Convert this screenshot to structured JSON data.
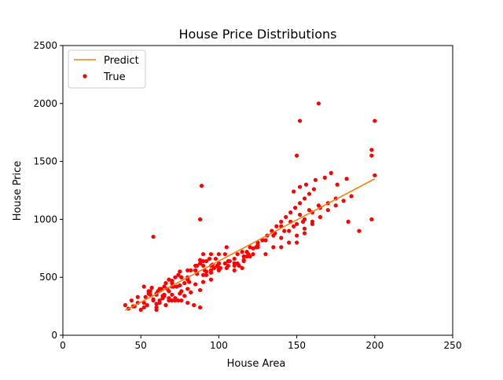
{
  "chart_data": {
    "type": "scatter",
    "title": "House Price Distributions",
    "xlabel": "House Area",
    "ylabel": "House Price",
    "xlim": [
      0,
      250
    ],
    "ylim": [
      0,
      2500
    ],
    "xticks": [
      0,
      50,
      100,
      150,
      200,
      250
    ],
    "yticks": [
      0,
      500,
      1000,
      1500,
      2000,
      2500
    ],
    "grid": false,
    "legend_position": "top-left",
    "series": [
      {
        "name": "Predict",
        "kind": "line",
        "color": "#ff7f0e",
        "x": [
          40,
          200
        ],
        "y": [
          215,
          1350
        ]
      },
      {
        "name": "True",
        "kind": "scatter",
        "color": "#ff0000",
        "x": [
          40,
          42,
          44,
          46,
          48,
          50,
          52,
          54,
          56,
          58,
          60,
          62,
          64,
          66,
          68,
          70,
          72,
          74,
          76,
          78,
          45,
          48,
          52,
          55,
          58,
          60,
          63,
          65,
          68,
          70,
          73,
          75,
          78,
          80,
          82,
          85,
          88,
          90,
          92,
          95,
          53,
          57,
          61,
          66,
          71,
          76,
          81,
          86,
          91,
          96,
          55,
          60,
          65,
          70,
          75,
          80,
          85,
          90,
          95,
          100,
          62,
          68,
          74,
          80,
          86,
          92,
          98,
          104,
          110,
          116,
          70,
          76,
          82,
          88,
          94,
          100,
          106,
          112,
          118,
          124,
          80,
          85,
          90,
          95,
          100,
          105,
          110,
          115,
          120,
          125,
          90,
          95,
          100,
          105,
          110,
          115,
          120,
          125,
          130,
          135,
          100,
          106,
          112,
          118,
          124,
          130,
          136,
          142,
          148,
          154,
          110,
          116,
          122,
          128,
          134,
          140,
          146,
          152,
          158,
          164,
          130,
          135,
          140,
          145,
          150,
          155,
          160,
          165,
          170,
          175,
          140,
          145,
          150,
          155,
          160,
          165,
          170,
          175,
          180,
          185,
          150,
          155,
          160,
          165,
          152,
          148,
          156,
          162,
          168,
          172,
          176,
          182,
          183,
          190,
          198,
          200,
          198,
          198,
          200,
          164,
          152,
          150,
          89,
          58,
          88,
          60,
          62,
          65,
          67,
          70,
          72,
          75,
          85,
          88,
          90,
          92,
          95,
          97,
          99,
          101,
          104,
          107,
          110,
          113,
          116,
          119,
          122,
          125,
          128,
          131,
          134,
          137,
          140,
          143,
          146,
          149,
          152,
          155,
          158,
          161,
          52,
          56,
          60,
          64,
          68,
          72,
          76,
          80,
          84,
          88
        ],
        "y": [
          260,
          230,
          300,
          250,
          280,
          220,
          240,
          260,
          350,
          300,
          240,
          280,
          320,
          260,
          300,
          350,
          320,
          300,
          380,
          340,
          250,
          330,
          280,
          360,
          310,
          270,
          400,
          340,
          380,
          300,
          420,
          360,
          450,
          400,
          370,
          440,
          390,
          460,
          520,
          480,
          330,
          410,
          380,
          450,
          420,
          500,
          460,
          530,
          560,
          610,
          380,
          350,
          420,
          470,
          430,
          500,
          560,
          600,
          540,
          620,
          400,
          480,
          520,
          560,
          600,
          640,
          660,
          700,
          620,
          680,
          420,
          500,
          560,
          620,
          660,
          580,
          640,
          700,
          720,
          760,
          480,
          560,
          640,
          700,
          620,
          580,
          660,
          720,
          760,
          800,
          520,
          600,
          700,
          760,
          620,
          580,
          680,
          760,
          820,
          860,
          560,
          600,
          620,
          680,
          760,
          820,
          880,
          900,
          940,
          980,
          600,
          640,
          700,
          820,
          900,
          940,
          980,
          1040,
          1080,
          1120,
          700,
          760,
          840,
          900,
          960,
          1000,
          1060,
          1100,
          1140,
          1180,
          760,
          800,
          860,
          920,
          980,
          1020,
          1080,
          1120,
          1160,
          1200,
          800,
          880,
          960,
          1020,
          1280,
          1240,
          1300,
          1340,
          1360,
          1400,
          1300,
          1350,
          980,
          900,
          1000,
          1380,
          1600,
          1550,
          1850,
          2000,
          1850,
          1550,
          1290,
          850,
          1000,
          220,
          300,
          350,
          400,
          450,
          500,
          550,
          600,
          650,
          700,
          550,
          560,
          580,
          600,
          580,
          620,
          640,
          560,
          600,
          650,
          700,
          750,
          780,
          820,
          860,
          900,
          940,
          980,
          1020,
          1060,
          1100,
          1140,
          1180,
          1220,
          1260,
          420,
          380,
          360,
          340,
          320,
          300,
          300,
          280,
          260,
          240
        ]
      }
    ]
  }
}
